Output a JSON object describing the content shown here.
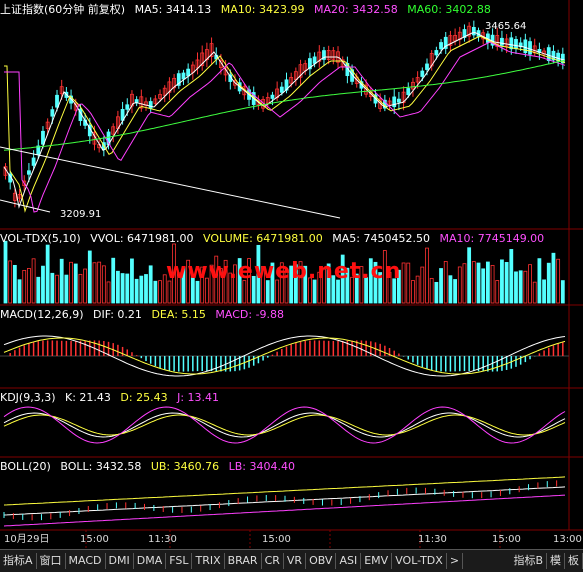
{
  "colors": {
    "up": "#ff3232",
    "down": "#54ffff",
    "ma5": "#ffffff",
    "ma10": "#ffff40",
    "ma20": "#ff40ff",
    "ma60": "#40ff40",
    "grid": "#800000"
  },
  "price": {
    "title": "上证指数(60分钟 前复权)",
    "ma5": "MA5: 3414.13",
    "ma10": "MA10: 3423.99",
    "ma20": "MA20: 3432.58",
    "ma60": "MA60: 3402.88",
    "high_label": "3465.64",
    "low_label": "3209.91"
  },
  "vol": {
    "title": "VOL-TDX(5,10)",
    "vvol": "VVOL: 6471981.00",
    "volume": "VOLUME: 6471981.00",
    "ma5": "MA5: 7450452.50",
    "ma10": "MA10: 7745149.00"
  },
  "watermark": "www.eweb.net.cn",
  "macd": {
    "title": "MACD(12,26,9)",
    "dif": "DIF: 0.21",
    "dea": "DEA: 5.15",
    "macd": "MACD: -9.88"
  },
  "kdj": {
    "title": "KDJ(9,3,3)",
    "k": "K: 21.43",
    "d": "D: 25.43",
    "j": "J: 13.41"
  },
  "boll": {
    "title": "BOLL(20)",
    "boll": "BOLL: 3432.58",
    "ub": "UB: 3460.76",
    "lb": "LB: 3404.40"
  },
  "xaxis": {
    "date": "10月29日",
    "t1": "15:00",
    "t2": "11:30",
    "t3": "15:00",
    "t4": "11:30",
    "t5": "15:00",
    "t6": "13:00"
  },
  "tabs": [
    "指标A",
    "窗口",
    "MACD",
    "DMI",
    "DMA",
    "FSL",
    "TRIX",
    "BRAR",
    "CR",
    "VR",
    "OBV",
    "ASI",
    "EMV",
    "VOL-TDX",
    ">"
  ],
  "tabs_right": [
    "指标B",
    "模",
    "板"
  ]
}
